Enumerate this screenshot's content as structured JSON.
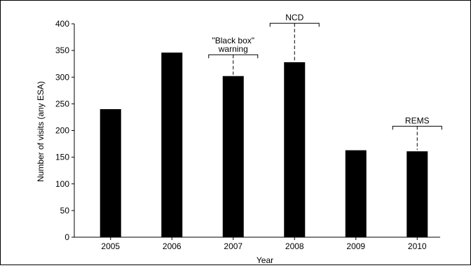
{
  "chart_data": {
    "type": "bar",
    "categories": [
      "2005",
      "2006",
      "2007",
      "2008",
      "2009",
      "2010"
    ],
    "values": [
      240,
      346,
      302,
      328,
      163,
      161
    ],
    "xlabel": "Year",
    "ylabel": "Number of visits (any ESA)",
    "ylim": [
      0,
      400
    ],
    "yticks": [
      0,
      50,
      100,
      150,
      200,
      250,
      300,
      350,
      400
    ],
    "bar_color": "#000000",
    "grid": false,
    "annotations": [
      {
        "category": "2007",
        "lines": [
          "\"Black box\"",
          "warning"
        ],
        "y_value": 342
      },
      {
        "category": "2008",
        "lines": [
          "NCD"
        ],
        "y_value": 401
      },
      {
        "category": "2010",
        "lines": [
          "REMS"
        ],
        "y_value": 208
      }
    ]
  }
}
